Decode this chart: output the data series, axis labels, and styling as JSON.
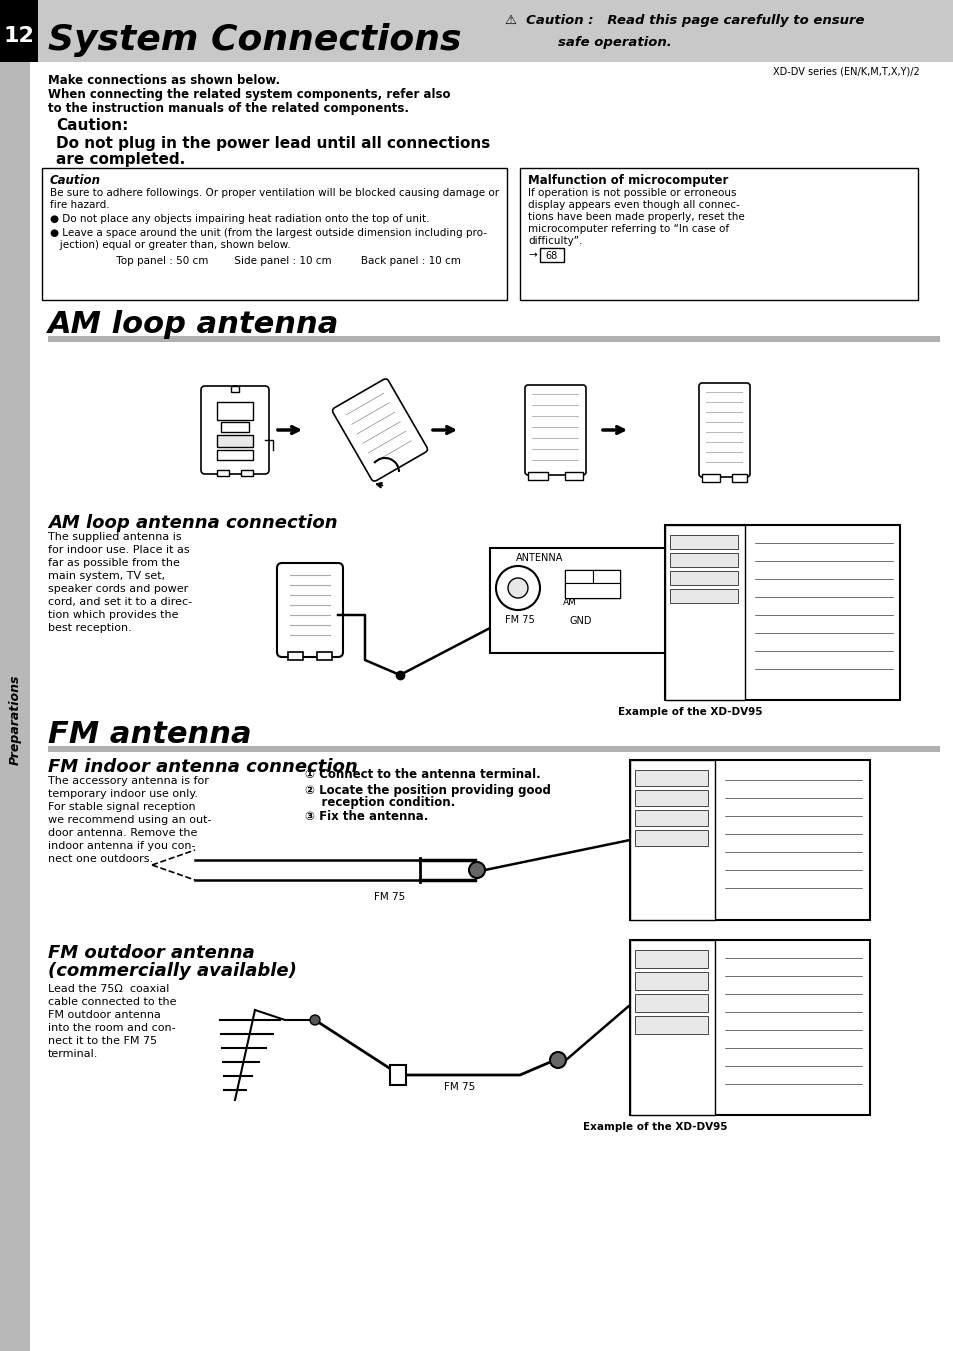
{
  "page_num": "12",
  "title": "System Connections",
  "series_text": "XD-DV series (EN/K,M,T,X,Y)/2",
  "intro_line1": "Make connections as shown below.",
  "intro_line2": "When connecting the related system components, refer also",
  "intro_line3": "to the instruction manuals of the related components.",
  "caution_label": "Caution:",
  "caution_body1": "Do not plug in the power lead until all connections",
  "caution_body2": "are completed.",
  "box1_title": "Caution",
  "box1_line1": "Be sure to adhere followings. Or proper ventilation will be blocked causing damage or",
  "box1_line2": "fire hazard.",
  "box1_bullet1": "● Do not place any objects impairing heat radiation onto the top of unit.",
  "box1_bullet2": "● Leave a space around the unit (from the largest outside dimension including pro-",
  "box1_bullet2b": "   jection) equal or greater than, shown below.",
  "box1_spacing": "         Top panel : 50 cm        Side panel : 10 cm         Back panel : 10 cm",
  "box2_title": "Malfunction of microcomputer",
  "box2_line1": "If operation is not possible or erroneous",
  "box2_line2": "display appears even though all connec-",
  "box2_line3": "tions have been made properly, reset the",
  "box2_line4": "microcomputer referring to “In case of",
  "box2_line5": "difficulty”.",
  "box2_ref": "→",
  "box2_page": "68",
  "am_title": "AM loop antenna",
  "am_conn_title": "AM loop antenna connection",
  "am_text1": "The supplied antenna is",
  "am_text2": "for indoor use. Place it as",
  "am_text3": "far as possible from the",
  "am_text4": "main system, TV set,",
  "am_text5": "speaker cords and power",
  "am_text6": "cord, and set it to a direc-",
  "am_text7": "tion which provides the",
  "am_text8": "best reception.",
  "antenna_label": "ANTENNA",
  "fm75_am": "FM 75",
  "am_label": "AM",
  "gnd_label": "GND",
  "example1": "Example of the XD-DV95",
  "fm_title": "FM antenna",
  "fm_indoor_title": "FM indoor antenna connection",
  "fm_in_text1": "The accessory antenna is for",
  "fm_in_text2": "temporary indoor use only.",
  "fm_in_text3": "For stable signal reception",
  "fm_in_text4": "we recommend using an out-",
  "fm_in_text5": "door antenna. Remove the",
  "fm_in_text6": "indoor antenna if you con-",
  "fm_in_text7": "nect one outdoors.",
  "step1": "① Connect to the antenna terminal.",
  "step2": "② Locate the position providing good",
  "step2b": "    reception condition.",
  "step3": "③ Fix the antenna.",
  "fm75_label": "FM 75",
  "fm_out_title1": "FM outdoor antenna",
  "fm_out_title2": "(commercially available)",
  "fm_out_text1": "Lead the 75Ω  coaxial",
  "fm_out_text2": "cable connected to the",
  "fm_out_text3": "FM outdoor antenna",
  "fm_out_text4": "into the room and con-",
  "fm_out_text5": "nect it to the FM 75",
  "fm_out_text6": "terminal.",
  "fm75_label2": "FM 75",
  "example2": "Example of the XD-DV95",
  "sidebar": "Preparations",
  "header_gray": "#c8c8c8",
  "black": "#000000",
  "white": "#ffffff",
  "gray_bar": "#b0b0b0",
  "light_gray": "#e8e8e8",
  "sidebar_gray": "#b8b8b8"
}
